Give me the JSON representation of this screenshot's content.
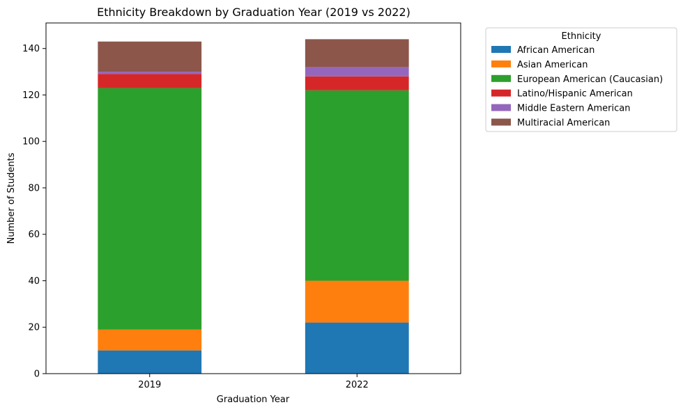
{
  "chart_data": {
    "type": "bar",
    "stacked": true,
    "title": "Ethnicity Breakdown by Graduation Year (2019 vs 2022)",
    "xlabel": "Graduation Year",
    "ylabel": "Number of Students",
    "categories": [
      "2019",
      "2022"
    ],
    "ylim": [
      0,
      151
    ],
    "yticks": [
      0,
      20,
      40,
      60,
      80,
      100,
      120,
      140
    ],
    "grid": false,
    "legend": {
      "title": "Ethnicity",
      "placement": "outside-top-right"
    },
    "series": [
      {
        "name": "African American",
        "color": "#1f77b4",
        "values": [
          10,
          22
        ]
      },
      {
        "name": "Asian American",
        "color": "#ff7f0e",
        "values": [
          9,
          18
        ]
      },
      {
        "name": "European American (Caucasian)",
        "color": "#2ca02c",
        "values": [
          104,
          82
        ]
      },
      {
        "name": "Latino/Hispanic American",
        "color": "#d62728",
        "values": [
          6,
          6
        ]
      },
      {
        "name": "Middle Eastern American",
        "color": "#9467bd",
        "values": [
          1,
          4
        ]
      },
      {
        "name": "Multiracial American",
        "color": "#8c564b",
        "values": [
          13,
          12
        ]
      }
    ]
  }
}
